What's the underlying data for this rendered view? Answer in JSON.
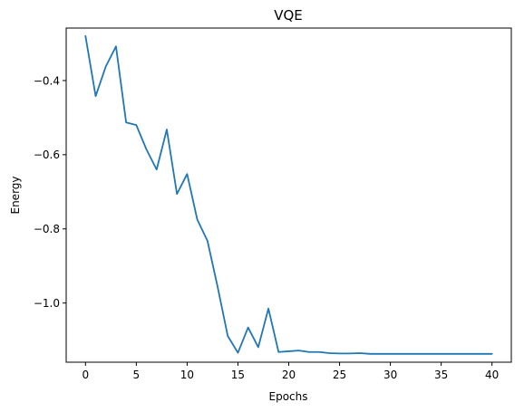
{
  "chart_data": {
    "type": "line",
    "title": "VQE",
    "xlabel": "Epochs",
    "ylabel": "Energy",
    "xlim": [
      -1.9,
      41.9
    ],
    "ylim": [
      -1.1595,
      -0.2585
    ],
    "grid": false,
    "legend": "none",
    "x_ticks": [
      0,
      5,
      10,
      15,
      20,
      25,
      30,
      35,
      40
    ],
    "x_tick_labels": [
      "0",
      "5",
      "10",
      "15",
      "20",
      "25",
      "30",
      "35",
      "40"
    ],
    "y_ticks": [
      -0.4,
      -0.6,
      -0.8,
      -1.0
    ],
    "y_tick_labels": [
      "−0.4",
      "−0.6",
      "−0.8",
      "−1.0"
    ],
    "series": [
      {
        "color": "#1f77b4",
        "x": [
          0,
          1,
          2,
          3,
          4,
          5,
          6,
          7,
          8,
          9,
          10,
          11,
          12,
          13,
          14,
          15,
          16,
          17,
          18,
          19,
          20,
          21,
          22,
          23,
          24,
          25,
          26,
          27,
          28,
          29,
          30,
          31,
          32,
          33,
          34,
          35,
          36,
          37,
          38,
          39,
          40
        ],
        "y": [
          -0.28,
          -0.442,
          -0.362,
          -0.308,
          -0.513,
          -0.52,
          -0.586,
          -0.64,
          -0.532,
          -0.706,
          -0.652,
          -0.775,
          -0.832,
          -0.956,
          -1.089,
          -1.134,
          -1.066,
          -1.119,
          -1.015,
          -1.132,
          -1.13,
          -1.128,
          -1.132,
          -1.132,
          -1.135,
          -1.136,
          -1.136,
          -1.135,
          -1.137,
          -1.137,
          -1.137,
          -1.137,
          -1.137,
          -1.137,
          -1.137,
          -1.137,
          -1.137,
          -1.137,
          -1.137,
          -1.137,
          -1.137
        ]
      }
    ]
  }
}
